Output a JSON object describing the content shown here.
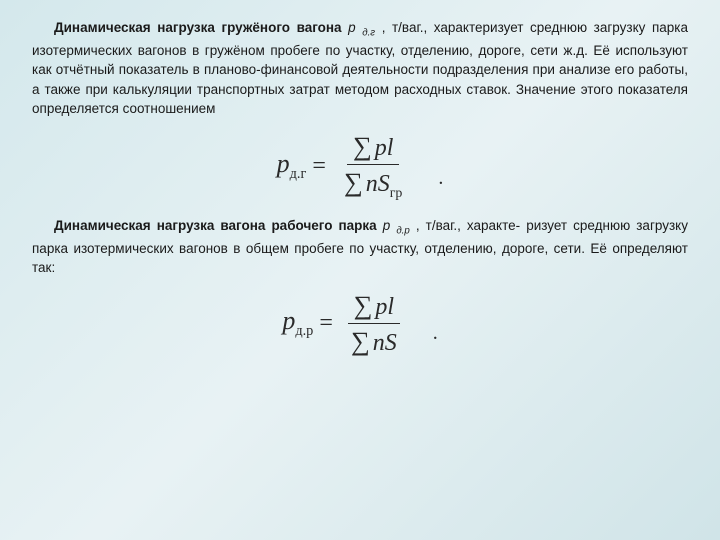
{
  "para1": {
    "intro_bold": "Динамическая нагрузка гружёного вагона",
    "var_symbol": "p",
    "var_sub": "д.г",
    "unit_text": ", т/ваг., характеризует",
    "body": "среднюю загрузку парка изотермических вагонов в гружёном пробеге по участку, отделению, дороге, сети ж.д. Её используют как отчётный показатель в планово-финансовой деятельности подразделения при анализе его работы, а также при калькуляции транспортных затрат методом расходных ставок. Значение этого показателя определяется соотношением"
  },
  "formula1": {
    "lhs_sym": "p",
    "lhs_sub": "д.г",
    "num_sigma": "∑",
    "num_expr": "pl",
    "den_sigma": "∑",
    "den_expr1": "nS",
    "den_expr_sub": "гр"
  },
  "para2": {
    "intro_bold": "Динамическая нагрузка вагона рабочего парка",
    "var_symbol": "p",
    "var_sub": "д.р",
    "unit_text": ", т/ваг., характе-",
    "body": "ризует среднюю загрузку парка изотермических вагонов в общем пробеге по участку, отделению, дороге, сети. Её определяют так:"
  },
  "formula2": {
    "lhs_sym": "p",
    "lhs_sub": "д.р",
    "num_sigma": "∑",
    "num_expr": "pl",
    "den_sigma": "∑",
    "den_expr": "nS"
  },
  "colors": {
    "text": "#1a1a1a",
    "formula": "#2a2a2a"
  }
}
